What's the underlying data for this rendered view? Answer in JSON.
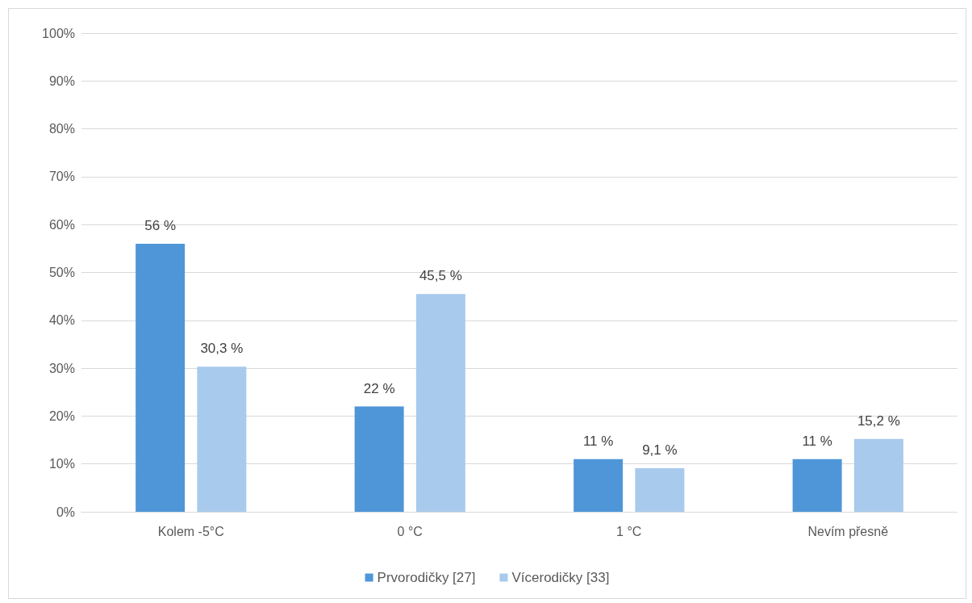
{
  "chart_data": {
    "type": "bar",
    "categories": [
      "Kolem -5°C",
      "0 °C",
      "1 °C",
      "Nevím přesně"
    ],
    "series": [
      {
        "name": "Prvorodičky [27]",
        "color": "#4f96d8",
        "values": [
          56,
          22,
          11,
          11
        ],
        "value_labels": [
          "56 %",
          "22 %",
          "11 %",
          "11 %"
        ]
      },
      {
        "name": "Vícerodičky [33]",
        "color": "#a8caec",
        "values": [
          30.3,
          45.5,
          9.1,
          15.2
        ],
        "value_labels": [
          "30,3 %",
          "45,5 %",
          "9,1 %",
          "15,2 %"
        ]
      }
    ],
    "ylim": [
      0,
      100
    ],
    "yticks": [
      {
        "value": 0,
        "label": "0%"
      },
      {
        "value": 10,
        "label": "10%"
      },
      {
        "value": 20,
        "label": "20%"
      },
      {
        "value": 30,
        "label": "30%"
      },
      {
        "value": 40,
        "label": "40%"
      },
      {
        "value": 50,
        "label": "50%"
      },
      {
        "value": 60,
        "label": "60%"
      },
      {
        "value": 70,
        "label": "70%"
      },
      {
        "value": 80,
        "label": "80%"
      },
      {
        "value": 90,
        "label": "90%"
      },
      {
        "value": 100,
        "label": "100%"
      }
    ],
    "grid": "y",
    "legend": "bottom"
  }
}
